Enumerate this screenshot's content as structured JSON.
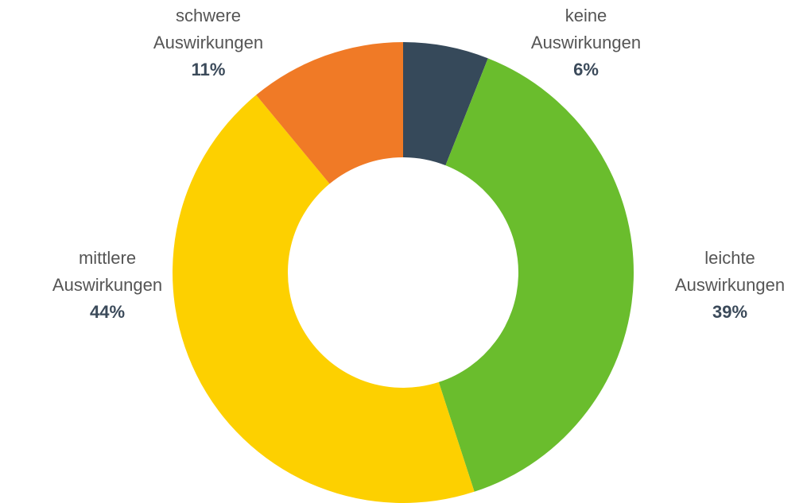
{
  "chart_data": {
    "type": "donut",
    "categories": [
      "keine Auswirkungen",
      "leichte Auswirkungen",
      "mittlere Auswirkungen",
      "schwere Auswirkungen"
    ],
    "values": [
      6,
      39,
      44,
      11
    ],
    "value_labels": [
      "6%",
      "39%",
      "44%",
      "11%"
    ],
    "colors": [
      "#36495a",
      "#6abd2d",
      "#fdd000",
      "#f07a26"
    ]
  }
}
